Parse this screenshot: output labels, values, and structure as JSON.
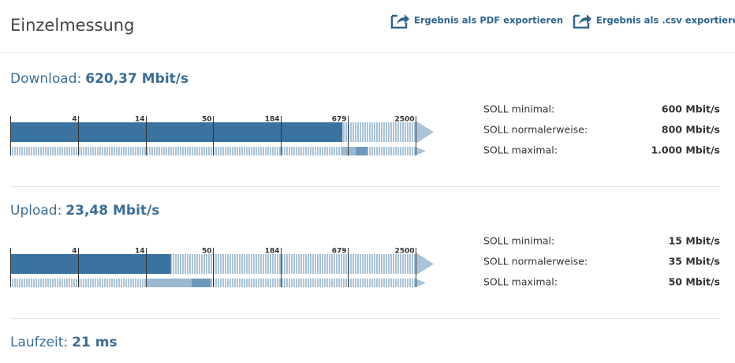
{
  "header": {
    "title": "Einzelmessung",
    "actions": [
      "Ergebnis als PDF exportieren",
      "Ergebnis als .csv exportieren"
    ]
  },
  "scale": {
    "ticks": [
      4,
      14,
      50,
      184,
      679,
      2500
    ],
    "log": true
  },
  "measurements": [
    {
      "label": "Download:",
      "value": 620.37,
      "value_label": "620,37 Mbit/s",
      "targets": [
        {
          "label": "SOLL minimal:",
          "value": 600,
          "value_label": "600 Mbit/s"
        },
        {
          "label": "SOLL normalerweise:",
          "value": 800,
          "value_label": "800 Mbit/s"
        },
        {
          "label": "SOLL maximal:",
          "value": 1000,
          "value_label": "1.000 Mbit/s"
        }
      ]
    },
    {
      "label": "Upload:",
      "value": 23.48,
      "value_label": "23,48 Mbit/s",
      "targets": [
        {
          "label": "SOLL minimal:",
          "value": 15,
          "value_label": "15 Mbit/s"
        },
        {
          "label": "SOLL normalerweise:",
          "value": 35,
          "value_label": "35 Mbit/s"
        },
        {
          "label": "SOLL maximal:",
          "value": 50,
          "value_label": "50 Mbit/s"
        }
      ]
    },
    {
      "label": "Laufzeit:",
      "value_label": "21 ms"
    }
  ]
}
